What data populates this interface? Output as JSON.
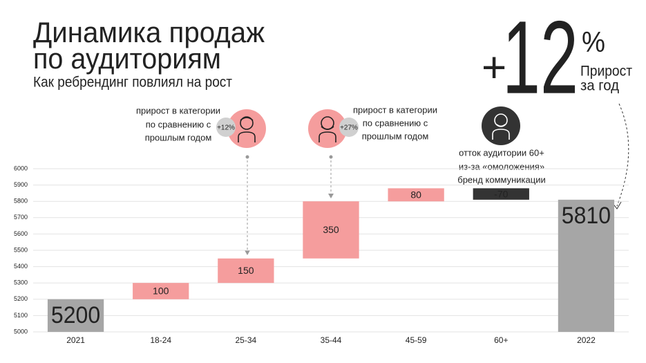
{
  "chart_data": {
    "type": "waterfall",
    "title": [
      "Динамика продаж",
      "по аудиториям"
    ],
    "subtitle": "Как ребрендинг повлиял на рост",
    "categories": [
      "2021",
      "18-24",
      "25-34",
      "35-44",
      "45-59",
      "60+",
      "2022"
    ],
    "values": [
      5200,
      100,
      150,
      350,
      80,
      -70,
      5810
    ],
    "colors": {
      "total": "#a6a6a6",
      "increase": "#f59d9d",
      "decrease": "#333333"
    },
    "ylim": [
      5000,
      6000
    ],
    "yticks": [
      5000,
      5100,
      5200,
      5300,
      5400,
      5500,
      5600,
      5700,
      5800,
      5900,
      6000
    ],
    "grid": true,
    "headline": {
      "sign": "+",
      "value": "12",
      "unit": "%",
      "caption": [
        "Прирост",
        "за год"
      ]
    },
    "callouts": [
      {
        "lines": [
          "прирост в категории",
          "по сравнению с",
          "прошлым годом"
        ],
        "badge": "+12%"
      },
      {
        "lines": [
          "прирост в категории",
          "по сравнению с",
          "прошлым годом"
        ],
        "badge": "+27%"
      },
      {
        "lines": [
          "отток аудитории 60+",
          "из-за «омоложения»",
          "бренд коммуникации"
        ]
      }
    ]
  }
}
